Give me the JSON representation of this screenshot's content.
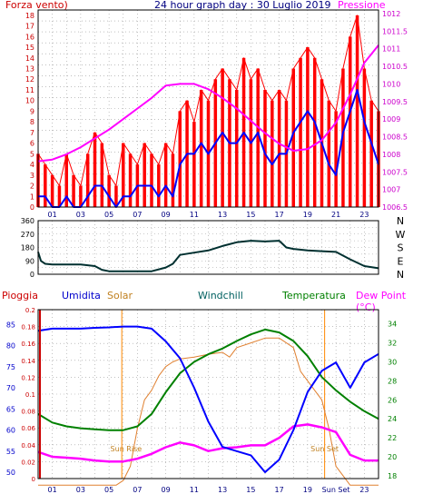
{
  "header": {
    "left_label": "Forza vento)",
    "title": "24 hour graph day : 30 Luglio 2019",
    "right_label": "Pressione"
  },
  "chart_data": [
    {
      "type": "line",
      "x_ticks": [
        "01",
        "03",
        "05",
        "07",
        "09",
        "11",
        "13",
        "15",
        "17",
        "19",
        "21",
        "23"
      ],
      "y_left_ticks": [
        "0",
        "1",
        "2",
        "3",
        "4",
        "5",
        "6",
        "7",
        "8",
        "9",
        "10",
        "11",
        "12",
        "13",
        "14",
        "15",
        "16",
        "17",
        "18"
      ],
      "y_right_ticks": [
        "1006.5",
        "1007",
        "1007.5",
        "1008",
        "1008.5",
        "1009",
        "1009.5",
        "1010",
        "1010.5",
        "1011",
        "1011.5",
        "1012"
      ],
      "ylim_left": [
        0,
        18.5
      ],
      "ylim_right": [
        1006.5,
        1012.1
      ],
      "xlim": [
        0,
        24
      ],
      "grid": true,
      "series": [
        {
          "role": "gust",
          "color": "#ff0000",
          "x": [
            0,
            0.5,
            1,
            1.5,
            2,
            2.5,
            3,
            3.5,
            4,
            4.5,
            5,
            5.5,
            6,
            6.5,
            7,
            7.5,
            8,
            8.5,
            9,
            9.5,
            10,
            10.5,
            11,
            11.5,
            12,
            12.5,
            13,
            13.5,
            14,
            14.5,
            15,
            15.5,
            16,
            16.5,
            17,
            17.5,
            18,
            18.5,
            19,
            19.5,
            20,
            20.5,
            21,
            21.5,
            22,
            22.5,
            23,
            23.5,
            24
          ],
          "values": [
            5,
            4,
            3,
            2,
            5,
            3,
            2,
            5,
            7,
            6,
            3,
            2,
            6,
            5,
            4,
            6,
            5,
            4,
            6,
            5,
            9,
            10,
            8,
            11,
            10,
            12,
            13,
            12,
            11,
            14,
            12,
            13,
            11,
            10,
            11,
            10,
            13,
            14,
            15,
            14,
            12,
            10,
            9,
            13,
            16,
            18,
            13,
            10,
            9
          ]
        },
        {
          "role": "average",
          "color": "#0000ff",
          "x": [
            0,
            0.5,
            1,
            1.5,
            2,
            2.5,
            3,
            3.5,
            4,
            4.5,
            5,
            5.5,
            6,
            6.5,
            7,
            7.5,
            8,
            8.5,
            9,
            9.5,
            10,
            10.5,
            11,
            11.5,
            12,
            12.5,
            13,
            13.5,
            14,
            14.5,
            15,
            15.5,
            16,
            16.5,
            17,
            17.5,
            18,
            18.5,
            19,
            19.5,
            20,
            20.5,
            21,
            21.5,
            22,
            22.5,
            23,
            23.5,
            24
          ],
          "values": [
            1,
            1,
            0,
            0,
            1,
            0,
            0,
            1,
            2,
            2,
            1,
            0,
            1,
            1,
            2,
            2,
            2,
            1,
            2,
            1,
            4,
            5,
            5,
            6,
            5,
            6,
            7,
            6,
            6,
            7,
            6,
            7,
            5,
            4,
            5,
            5,
            7,
            8,
            9,
            8,
            6,
            4,
            3,
            7,
            9,
            11,
            8,
            6,
            4
          ]
        },
        {
          "role": "pressure",
          "axis": "right",
          "color": "#ff00ff",
          "x": [
            0,
            1,
            2,
            3,
            4,
            5,
            6,
            7,
            8,
            9,
            10,
            11,
            12,
            13,
            14,
            15,
            16,
            17,
            18,
            19,
            20,
            21,
            22,
            23,
            24
          ],
          "values": [
            1007.8,
            1007.85,
            1008.0,
            1008.2,
            1008.45,
            1008.7,
            1009.0,
            1009.3,
            1009.6,
            1009.95,
            1010.0,
            1010.0,
            1009.85,
            1009.6,
            1009.3,
            1008.95,
            1008.6,
            1008.3,
            1008.1,
            1008.15,
            1008.4,
            1008.9,
            1009.7,
            1010.6,
            1011.1
          ]
        }
      ]
    },
    {
      "type": "line",
      "y_right_labels": [
        "N",
        "W",
        "S",
        "E",
        "N"
      ],
      "y_ticks": [
        "0",
        "45",
        "90",
        "135",
        "180",
        "225",
        "270",
        "315",
        "360"
      ],
      "ylim": [
        0,
        360
      ],
      "xlim": [
        0,
        24
      ],
      "grid": true,
      "series": [
        {
          "role": "wind_direction",
          "color": "#003030",
          "x": [
            0,
            0.2,
            0.5,
            1,
            2,
            3,
            4,
            4.5,
            5,
            6,
            7,
            8,
            9,
            9.5,
            10,
            11,
            12,
            13,
            14,
            15,
            16,
            17,
            17.5,
            18,
            19,
            20,
            21,
            22,
            23,
            24
          ],
          "values": [
            150,
            90,
            70,
            65,
            65,
            65,
            55,
            30,
            20,
            20,
            20,
            20,
            45,
            70,
            130,
            145,
            160,
            190,
            215,
            225,
            220,
            225,
            180,
            170,
            160,
            155,
            150,
            100,
            55,
            40
          ]
        }
      ]
    },
    {
      "type": "line",
      "labels": {
        "rain": "Pioggia",
        "humidity": "Umidita",
        "solar": "Solar",
        "windchill": "Windchill",
        "temperature": "Temperatura",
        "dewpoint": "Dew Point (°C)"
      },
      "y_rain_ticks": [
        "0",
        "0.02",
        "0.04",
        "0.06",
        "0.08",
        "0.1",
        "0.12",
        "0.14",
        "0.16",
        "0.18",
        "0.2"
      ],
      "y_humidity_ticks": [
        "50",
        "55",
        "60",
        "65",
        "70",
        "75",
        "80",
        "85"
      ],
      "y_temp_ticks": [
        "18",
        "20",
        "22",
        "24",
        "26",
        "28",
        "30",
        "32",
        "34"
      ],
      "x_ticks": [
        "01",
        "03",
        "05",
        "07",
        "09",
        "11",
        "13",
        "15",
        "17",
        "19",
        "Sun Set",
        "23"
      ],
      "annotations": [
        "Sun Rise",
        "Sun Set"
      ],
      "xlim": [
        0,
        24
      ],
      "grid": true,
      "series": [
        {
          "role": "humidity",
          "color": "#0000ff",
          "x": [
            0,
            1,
            2,
            3,
            4,
            5,
            6,
            7,
            8,
            9,
            10,
            11,
            12,
            13,
            14,
            15,
            16,
            17,
            18,
            19,
            20,
            21,
            22,
            23,
            24
          ],
          "values": [
            83.5,
            84,
            84,
            84,
            84.2,
            84.3,
            84.5,
            84.5,
            84,
            81,
            77,
            70,
            62,
            56,
            55,
            54,
            50,
            53,
            60,
            69,
            74,
            76,
            70,
            76,
            78
          ]
        },
        {
          "role": "temperature",
          "color": "#008000",
          "x": [
            0,
            1,
            2,
            3,
            4,
            5,
            6,
            7,
            8,
            9,
            10,
            11,
            12,
            13,
            14,
            15,
            16,
            17,
            18,
            19,
            20,
            21,
            22,
            23,
            24
          ],
          "values": [
            24.5,
            23.6,
            23.2,
            23.0,
            22.9,
            22.8,
            22.8,
            23.2,
            24.5,
            26.8,
            28.8,
            30.0,
            30.8,
            31.4,
            32.2,
            32.9,
            33.4,
            33.1,
            32.2,
            30.6,
            28.4,
            27.0,
            25.8,
            24.8,
            24.0
          ]
        },
        {
          "role": "solar",
          "color": "#e08030",
          "x": [
            0,
            5.5,
            6,
            6.5,
            7,
            7.5,
            8,
            8.5,
            9,
            9.5,
            10,
            11,
            12,
            13,
            13.5,
            14,
            15,
            16,
            17,
            18,
            18.5,
            19,
            20,
            20.5,
            21,
            22,
            24
          ],
          "values": [
            17,
            17,
            17.5,
            19,
            23,
            26,
            27,
            28.5,
            29.5,
            30,
            30.3,
            30.5,
            30.8,
            31,
            30.5,
            31.5,
            32,
            32.5,
            32.5,
            31.5,
            29,
            28,
            26,
            23,
            19,
            17,
            17
          ]
        },
        {
          "role": "dewpoint",
          "color": "#ff00ff",
          "x": [
            0,
            1,
            2,
            3,
            4,
            5,
            6,
            7,
            8,
            9,
            10,
            11,
            12,
            13,
            14,
            15,
            16,
            17,
            18,
            19,
            20,
            21,
            22,
            23,
            24
          ],
          "values": [
            20.5,
            20.0,
            19.9,
            19.8,
            19.6,
            19.5,
            19.5,
            19.8,
            20.3,
            21.0,
            21.5,
            21.2,
            20.6,
            20.9,
            21.0,
            21.2,
            21.2,
            22.0,
            23.2,
            23.4,
            23.1,
            22.6,
            20.2,
            19.6,
            19.6
          ]
        }
      ]
    }
  ],
  "colors": {
    "wind_gust": "#ff0000",
    "wind_avg": "#0000ff",
    "pressure": "#ff00ff",
    "direction": "#003030",
    "humidity": "#0000ff",
    "temperature": "#008000",
    "solar": "#e08030",
    "dewpoint": "#ff00ff",
    "rain": "#cc0000",
    "windchill": "#006060"
  }
}
